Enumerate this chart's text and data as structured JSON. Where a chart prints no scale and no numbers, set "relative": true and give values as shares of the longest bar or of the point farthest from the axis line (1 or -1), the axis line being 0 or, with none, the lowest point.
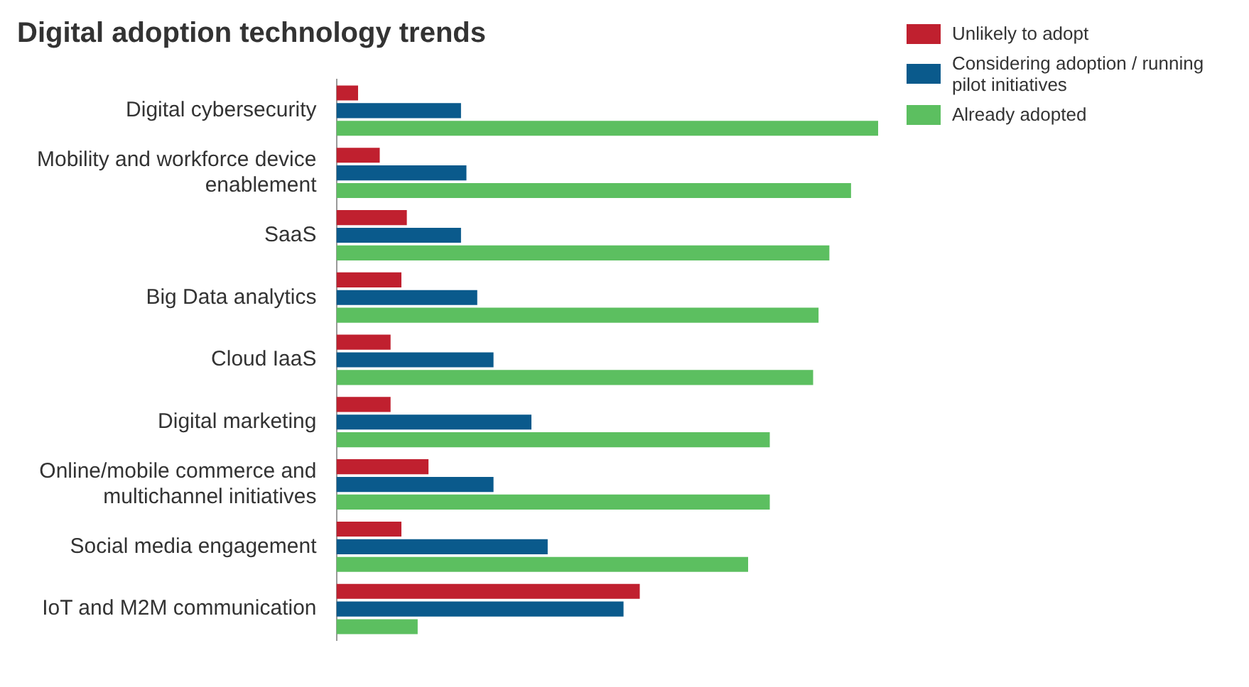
{
  "chart_data": {
    "type": "bar",
    "orientation": "horizontal",
    "relative": true,
    "title": "Digital adoption technology trends",
    "legend": "top right",
    "grid": false,
    "categories": [
      "Digital cybersecurity",
      "Mobility and workforce device enablement",
      "SaaS",
      "Big Data analytics",
      "Cloud IaaS",
      "Digital marketing",
      "Online/mobile commerce and multichannel initiatives",
      "Social media engagement",
      "IoT and M2M communication"
    ],
    "series": [
      {
        "name": "Unlikely to adopt",
        "color": "#c0202f",
        "values": [
          0.04,
          0.08,
          0.13,
          0.12,
          0.1,
          0.1,
          0.17,
          0.12,
          0.56
        ]
      },
      {
        "name": "Considering adoption / running pilot initiatives",
        "color": "#0a5a8c",
        "values": [
          0.23,
          0.24,
          0.23,
          0.26,
          0.29,
          0.36,
          0.29,
          0.39,
          0.53
        ]
      },
      {
        "name": "Already adopted",
        "color": "#5cbf60",
        "values": [
          1,
          0.95,
          0.91,
          0.89,
          0.88,
          0.8,
          0.8,
          0.76,
          0.15
        ]
      }
    ]
  }
}
